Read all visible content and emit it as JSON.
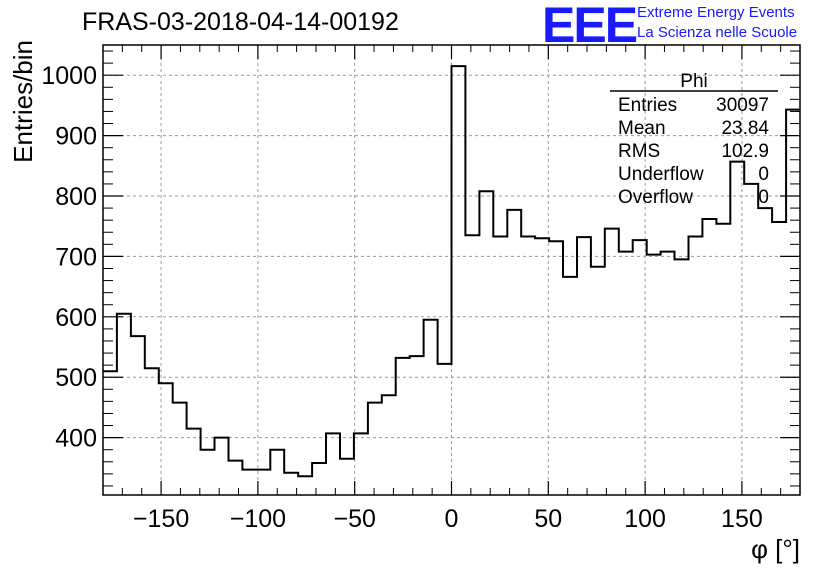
{
  "title": "FRAS-03-2018-04-14-00192",
  "logo": {
    "text": "EEE",
    "line1": "Extreme Energy Events",
    "line2": "La Scienza nelle Scuole",
    "color": "#1a1aff"
  },
  "stats_box": {
    "name": "Phi",
    "rows": [
      {
        "label": "Entries",
        "value": "30097"
      },
      {
        "label": "Mean",
        "value": "23.84"
      },
      {
        "label": "RMS",
        "value": "102.9"
      },
      {
        "label": "Underflow",
        "value": "0"
      },
      {
        "label": "Overflow",
        "value": "0"
      }
    ]
  },
  "chart_data": {
    "type": "histogram",
    "xlabel": "φ [°]",
    "ylabel": "Entries/bin",
    "xlim": [
      -180,
      180
    ],
    "ylim": [
      305,
      1050
    ],
    "bin_width": 7.2,
    "x_ticks": [
      -150,
      -100,
      -50,
      0,
      50,
      100,
      150
    ],
    "x_tick_labels": [
      "−150",
      "−100",
      "−50",
      "0",
      "50",
      "100",
      "150"
    ],
    "y_ticks": [
      400,
      500,
      600,
      700,
      800,
      900,
      1000
    ],
    "y_tick_labels": [
      "400",
      "500",
      "600",
      "700",
      "800",
      "900",
      "1000"
    ],
    "grid": true,
    "line_color": "#000000",
    "values": [
      510,
      605,
      568,
      515,
      490,
      458,
      415,
      380,
      400,
      362,
      347,
      347,
      380,
      342,
      336,
      358,
      407,
      365,
      407,
      458,
      470,
      532,
      535,
      595,
      522,
      1015,
      735,
      808,
      733,
      777,
      733,
      730,
      725,
      666,
      732,
      683,
      746,
      708,
      727,
      703,
      708,
      695,
      733,
      762,
      754,
      857,
      820,
      780,
      757,
      943
    ]
  }
}
